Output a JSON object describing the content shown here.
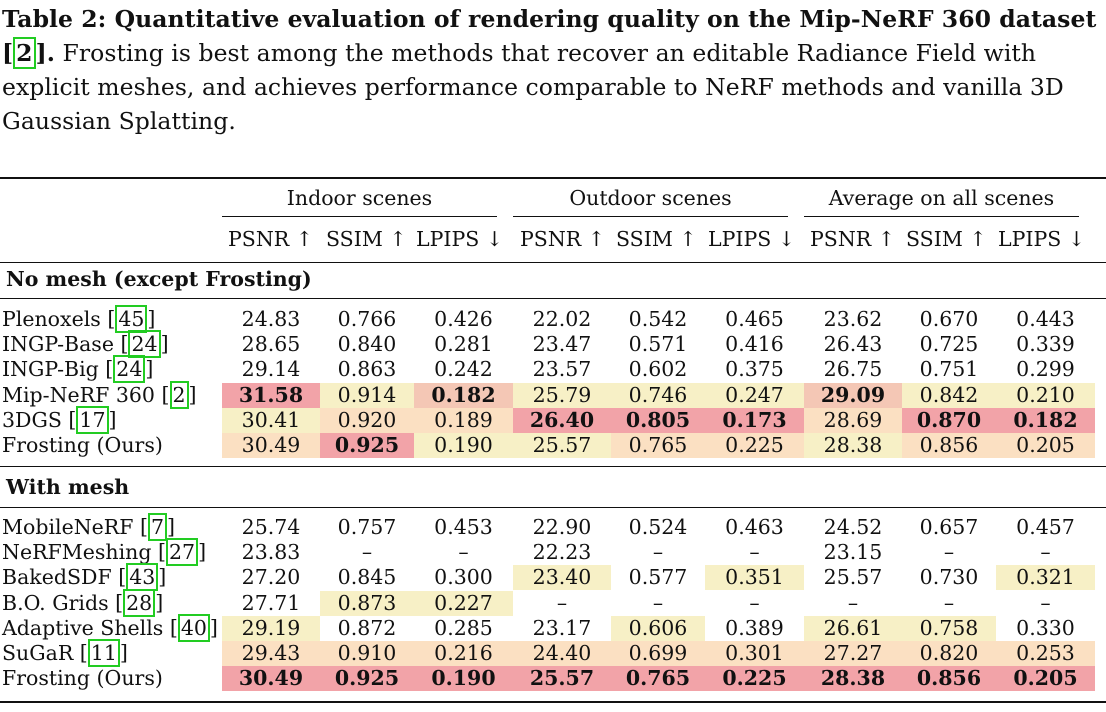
{
  "caption": {
    "lead": "Table 2: Quantitative evaluation of rendering quality on the Mip-NeRF 360 dataset",
    "lead_cite": "2",
    "rest": " Frosting is best among the methods that recover an editable Radiance Field with explicit meshes, and achieves performance comparable to NeRF methods and vanilla 3D Gaussian Splatting."
  },
  "groups": [
    "Indoor scenes",
    "Outdoor scenes",
    "Average on all scenes"
  ],
  "metrics": [
    "PSNR ↑",
    "SSIM ↑",
    "LPIPS ↓",
    "PSNR ↑",
    "SSIM ↑",
    "LPIPS ↓",
    "PSNR ↑",
    "SSIM ↑",
    "LPIPS ↓"
  ],
  "sections": [
    {
      "title": "No mesh (except Frosting)",
      "rows": [
        {
          "name": "Plenoxels ",
          "cite": "45",
          "values": [
            "24.83",
            "0.766",
            "0.426",
            "22.02",
            "0.542",
            "0.465",
            "23.62",
            "0.670",
            "0.443"
          ],
          "styles": [
            "",
            "",
            "",
            "",
            "",
            "",
            "",
            "",
            ""
          ]
        },
        {
          "name": "INGP-Base ",
          "cite": "24",
          "values": [
            "28.65",
            "0.840",
            "0.281",
            "23.47",
            "0.571",
            "0.416",
            "26.43",
            "0.725",
            "0.339"
          ],
          "styles": [
            "",
            "",
            "",
            "",
            "",
            "",
            "",
            "",
            ""
          ]
        },
        {
          "name": "INGP-Big ",
          "cite": "24",
          "values": [
            "29.14",
            "0.863",
            "0.242",
            "23.57",
            "0.602",
            "0.375",
            "26.75",
            "0.751",
            "0.299"
          ],
          "styles": [
            "",
            "",
            "",
            "",
            "",
            "",
            "",
            "",
            ""
          ]
        },
        {
          "name": "Mip-NeRF 360 ",
          "cite": "2",
          "values": [
            "31.58",
            "0.914",
            "0.182",
            "25.79",
            "0.746",
            "0.247",
            "29.09",
            "0.842",
            "0.210"
          ],
          "styles": [
            "first b",
            "c3",
            "c1 b",
            "c3",
            "c3",
            "c3",
            "c1 b",
            "c3",
            "c3"
          ]
        },
        {
          "name": "3DGS ",
          "cite": "17",
          "values": [
            "30.41",
            "0.920",
            "0.189",
            "26.40",
            "0.805",
            "0.173",
            "28.69",
            "0.870",
            "0.182"
          ],
          "styles": [
            "c3",
            "c2",
            "c2",
            "first b",
            "first b",
            "first b",
            "c2",
            "first b",
            "first b"
          ]
        },
        {
          "name": "Frosting (Ours)",
          "cite": "",
          "values": [
            "30.49",
            "0.925",
            "0.190",
            "25.57",
            "0.765",
            "0.225",
            "28.38",
            "0.856",
            "0.205"
          ],
          "styles": [
            "c2",
            "first b",
            "c3",
            "c3",
            "c2",
            "c2",
            "c3",
            "c2",
            "c2"
          ]
        }
      ]
    },
    {
      "title": "With mesh",
      "rows": [
        {
          "name": "MobileNeRF ",
          "cite": "7",
          "values": [
            "25.74",
            "0.757",
            "0.453",
            "22.90",
            "0.524",
            "0.463",
            "24.52",
            "0.657",
            "0.457"
          ],
          "styles": [
            "",
            "",
            "",
            "",
            "",
            "",
            "",
            "",
            ""
          ]
        },
        {
          "name": "NeRFMeshing ",
          "cite": "27",
          "values": [
            "23.83",
            "–",
            "–",
            "22.23",
            "–",
            "–",
            "23.15",
            "–",
            "–"
          ],
          "styles": [
            "",
            "",
            "",
            "",
            "",
            "",
            "",
            "",
            ""
          ]
        },
        {
          "name": "BakedSDF ",
          "cite": "43",
          "values": [
            "27.20",
            "0.845",
            "0.300",
            "23.40",
            "0.577",
            "0.351",
            "25.57",
            "0.730",
            "0.321"
          ],
          "styles": [
            "",
            "",
            "",
            "c3",
            "",
            "c3",
            "",
            "",
            "c3"
          ]
        },
        {
          "name": "B.O. Grids ",
          "cite": "28",
          "values": [
            "27.71",
            "0.873",
            "0.227",
            "–",
            "–",
            "–",
            "–",
            "–",
            "–"
          ],
          "styles": [
            "",
            "c3",
            "c3",
            "",
            "",
            "",
            "",
            "",
            ""
          ]
        },
        {
          "name": "Adaptive Shells ",
          "cite": "40",
          "values": [
            "29.19",
            "0.872",
            "0.285",
            "23.17",
            "0.606",
            "0.389",
            "26.61",
            "0.758",
            "0.330"
          ],
          "styles": [
            "c3",
            "",
            "",
            "",
            "c3",
            "",
            "c3",
            "c3",
            ""
          ]
        },
        {
          "name": "SuGaR ",
          "cite": "11",
          "values": [
            "29.43",
            "0.910",
            "0.216",
            "24.40",
            "0.699",
            "0.301",
            "27.27",
            "0.820",
            "0.253"
          ],
          "styles": [
            "c2",
            "c2",
            "c2",
            "c2",
            "c2",
            "c2",
            "c2",
            "c2",
            "c2"
          ]
        },
        {
          "name": "Frosting (Ours)",
          "cite": "",
          "values": [
            "30.49",
            "0.925",
            "0.190",
            "25.57",
            "0.765",
            "0.225",
            "28.38",
            "0.856",
            "0.205"
          ],
          "styles": [
            "first b",
            "first b",
            "first b",
            "first b",
            "first b",
            "first b",
            "first b",
            "first b",
            "first b"
          ]
        }
      ]
    }
  ]
}
